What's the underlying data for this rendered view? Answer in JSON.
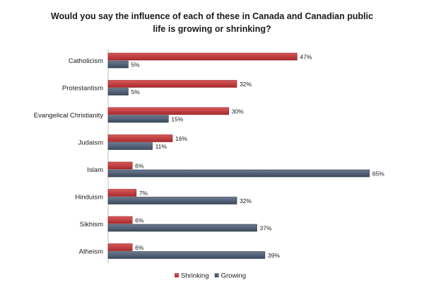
{
  "chart_data": {
    "type": "bar",
    "orientation": "horizontal",
    "title_lines": [
      "Would you say the influence of each of these in Canada and Canadian public",
      "life is growing or shrinking?"
    ],
    "categories": [
      "Catholicism",
      "Protestantism",
      "Evangelical Christianity",
      "Judaism",
      "Islam",
      "Hinduism",
      "Sikhism",
      "Atheism"
    ],
    "series": [
      {
        "name": "Shrinking",
        "color": "#c0393b",
        "values": [
          47,
          32,
          30,
          16,
          6,
          7,
          6,
          6
        ],
        "labels": [
          "47%",
          "32%",
          "30%",
          "16%",
          "6%",
          "7%",
          "6%",
          "6%"
        ]
      },
      {
        "name": "Growing",
        "color": "#4f5c72",
        "values": [
          5,
          5,
          15,
          11,
          65,
          32,
          37,
          39
        ],
        "labels": [
          "5%",
          "5%",
          "15%",
          "11%",
          "65%",
          "32%",
          "37%",
          "39%"
        ]
      }
    ],
    "xlim": [
      0,
      70
    ],
    "grid": false,
    "legend_position": "bottom"
  }
}
